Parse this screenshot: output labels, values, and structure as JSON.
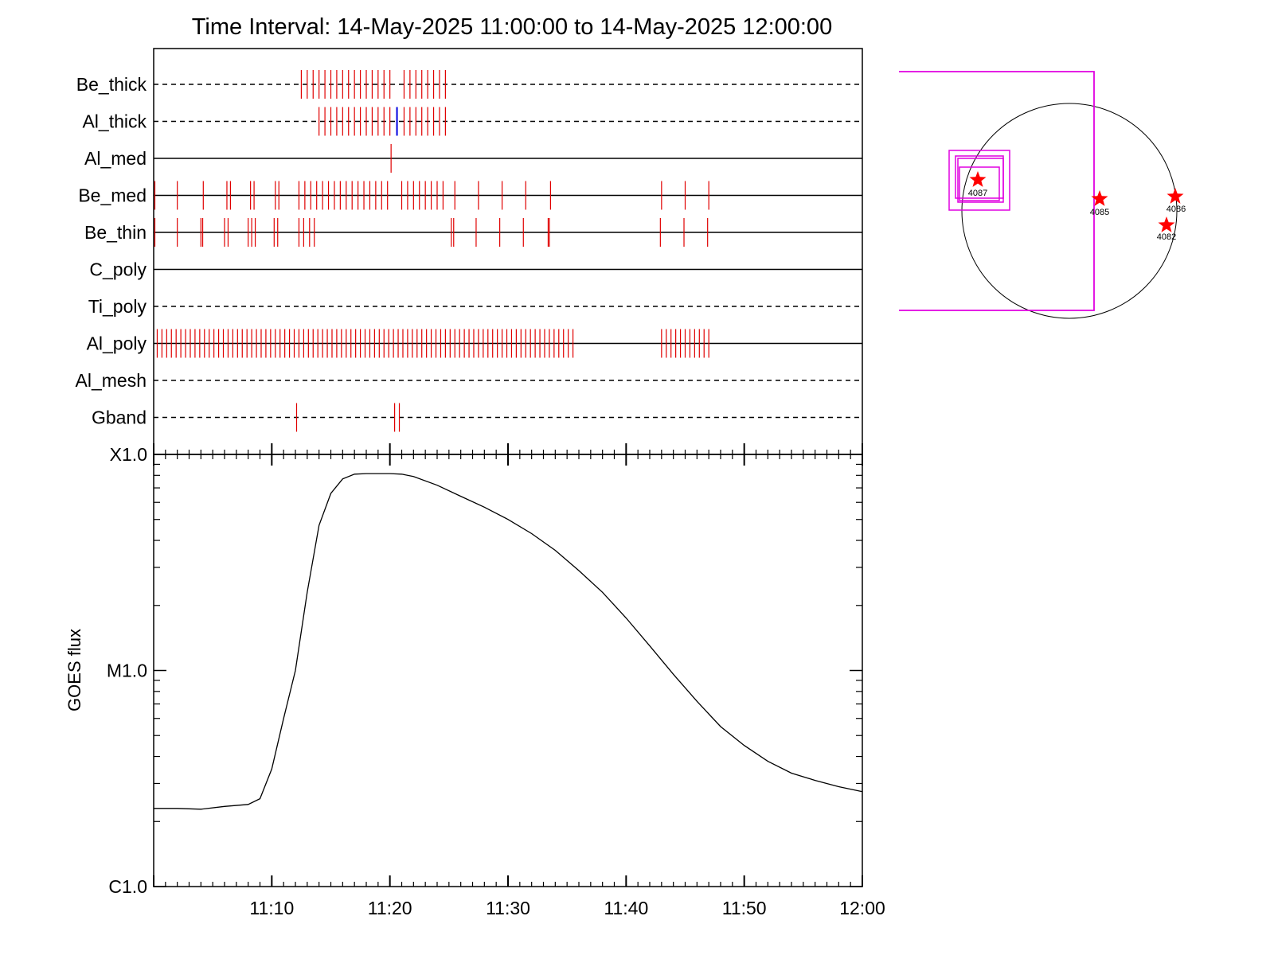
{
  "chart_data": [
    {
      "type": "timeline",
      "title": "Time Interval: 14-May-2025 11:00:00 to 14-May-2025 12:00:00",
      "time_range": [
        "11:00",
        "12:00"
      ],
      "rows": [
        {
          "name": "Be_thick",
          "line": "dashed",
          "events": [
            {
              "time": "11:12.5",
              "color": "#e00000"
            },
            {
              "time": "11:13.0",
              "color": "#e00000"
            },
            {
              "time": "11:13.5",
              "color": "#e00000"
            },
            {
              "time": "11:14.0",
              "color": "#e00000"
            },
            {
              "time": "11:14.5",
              "color": "#e00000"
            },
            {
              "time": "11:15.0",
              "color": "#e00000"
            },
            {
              "time": "11:15.5",
              "color": "#e00000"
            },
            {
              "time": "11:16.0",
              "color": "#e00000"
            },
            {
              "time": "11:16.5",
              "color": "#e00000"
            },
            {
              "time": "11:17.0",
              "color": "#e00000"
            },
            {
              "time": "11:17.5",
              "color": "#e00000"
            },
            {
              "time": "11:18.0",
              "color": "#e00000"
            },
            {
              "time": "11:18.5",
              "color": "#e00000"
            },
            {
              "time": "11:19.0",
              "color": "#e00000"
            },
            {
              "time": "11:19.5",
              "color": "#e00000"
            },
            {
              "time": "11:20.0",
              "color": "#e00000"
            },
            {
              "time": "11:21.2",
              "color": "#e00000"
            },
            {
              "time": "11:21.7",
              "color": "#e00000"
            },
            {
              "time": "11:22.2",
              "color": "#e00000"
            },
            {
              "time": "11:22.7",
              "color": "#e00000"
            },
            {
              "time": "11:23.2",
              "color": "#e00000"
            },
            {
              "time": "11:23.7",
              "color": "#e00000"
            },
            {
              "time": "11:24.2",
              "color": "#e00000"
            },
            {
              "time": "11:24.7",
              "color": "#e00000"
            }
          ]
        },
        {
          "name": "Al_thick",
          "line": "dashed",
          "events": [
            {
              "time": "11:14.0",
              "color": "#e00000"
            },
            {
              "time": "11:14.5",
              "color": "#e00000"
            },
            {
              "time": "11:15.0",
              "color": "#e00000"
            },
            {
              "time": "11:15.5",
              "color": "#e00000"
            },
            {
              "time": "11:16.0",
              "color": "#e00000"
            },
            {
              "time": "11:16.5",
              "color": "#e00000"
            },
            {
              "time": "11:17.0",
              "color": "#e00000"
            },
            {
              "time": "11:17.5",
              "color": "#e00000"
            },
            {
              "time": "11:18.0",
              "color": "#e00000"
            },
            {
              "time": "11:18.5",
              "color": "#e00000"
            },
            {
              "time": "11:19.0",
              "color": "#e00000"
            },
            {
              "time": "11:19.5",
              "color": "#e00000"
            },
            {
              "time": "11:20.0",
              "color": "#e00000"
            },
            {
              "time": "11:20.6",
              "color": "#0000e0"
            },
            {
              "time": "11:21.2",
              "color": "#e00000"
            },
            {
              "time": "11:21.7",
              "color": "#e00000"
            },
            {
              "time": "11:22.2",
              "color": "#e00000"
            },
            {
              "time": "11:22.7",
              "color": "#e00000"
            },
            {
              "time": "11:23.2",
              "color": "#e00000"
            },
            {
              "time": "11:23.7",
              "color": "#e00000"
            },
            {
              "time": "11:24.2",
              "color": "#e00000"
            },
            {
              "time": "11:24.7",
              "color": "#e00000"
            }
          ]
        },
        {
          "name": "Al_med",
          "line": "solid",
          "events": [
            {
              "time": "11:20.1",
              "color": "#e00000"
            }
          ]
        },
        {
          "name": "Be_med",
          "line": "solid",
          "events": [
            {
              "time": "11:00.1",
              "color": "#e00000"
            },
            {
              "time": "11:02.0",
              "color": "#e00000"
            },
            {
              "time": "11:04.2",
              "color": "#e00000"
            },
            {
              "time": "11:06.2",
              "color": "#e00000"
            },
            {
              "time": "11:06.5",
              "color": "#e00000"
            },
            {
              "time": "11:08.2",
              "color": "#e00000"
            },
            {
              "time": "11:08.5",
              "color": "#e00000"
            },
            {
              "time": "11:10.3",
              "color": "#e00000"
            },
            {
              "time": "11:10.6",
              "color": "#e00000"
            },
            {
              "time": "11:12.3",
              "color": "#e00000"
            },
            {
              "time": "11:12.8",
              "color": "#e00000"
            },
            {
              "time": "11:13.3",
              "color": "#e00000"
            },
            {
              "time": "11:13.8",
              "color": "#e00000"
            },
            {
              "time": "11:14.3",
              "color": "#e00000"
            },
            {
              "time": "11:14.8",
              "color": "#e00000"
            },
            {
              "time": "11:15.3",
              "color": "#e00000"
            },
            {
              "time": "11:15.8",
              "color": "#e00000"
            },
            {
              "time": "11:16.3",
              "color": "#e00000"
            },
            {
              "time": "11:16.8",
              "color": "#e00000"
            },
            {
              "time": "11:17.3",
              "color": "#e00000"
            },
            {
              "time": "11:17.8",
              "color": "#e00000"
            },
            {
              "time": "11:18.3",
              "color": "#e00000"
            },
            {
              "time": "11:18.8",
              "color": "#e00000"
            },
            {
              "time": "11:19.3",
              "color": "#e00000"
            },
            {
              "time": "11:19.8",
              "color": "#e00000"
            },
            {
              "time": "11:21.0",
              "color": "#e00000"
            },
            {
              "time": "11:21.5",
              "color": "#e00000"
            },
            {
              "time": "11:22.0",
              "color": "#e00000"
            },
            {
              "time": "11:22.5",
              "color": "#e00000"
            },
            {
              "time": "11:23.0",
              "color": "#e00000"
            },
            {
              "time": "11:23.5",
              "color": "#e00000"
            },
            {
              "time": "11:24.0",
              "color": "#e00000"
            },
            {
              "time": "11:24.5",
              "color": "#e00000"
            },
            {
              "time": "11:25.5",
              "color": "#e00000"
            },
            {
              "time": "11:27.5",
              "color": "#e00000"
            },
            {
              "time": "11:29.5",
              "color": "#e00000"
            },
            {
              "time": "11:31.5",
              "color": "#e00000"
            },
            {
              "time": "11:33.6",
              "color": "#e00000"
            },
            {
              "time": "11:43.0",
              "color": "#e00000"
            },
            {
              "time": "11:45.0",
              "color": "#e00000"
            },
            {
              "time": "11:47.0",
              "color": "#e00000"
            }
          ]
        },
        {
          "name": "Be_thin",
          "line": "solid",
          "events": [
            {
              "time": "11:00.1",
              "color": "#e00000"
            },
            {
              "time": "11:02.0",
              "color": "#e00000"
            },
            {
              "time": "11:04.0",
              "color": "#e00000"
            },
            {
              "time": "11:04.15",
              "color": "#e00000"
            },
            {
              "time": "11:06.0",
              "color": "#e00000"
            },
            {
              "time": "11:06.3",
              "color": "#e00000"
            },
            {
              "time": "11:08.0",
              "color": "#e00000"
            },
            {
              "time": "11:08.3",
              "color": "#e00000"
            },
            {
              "time": "11:08.6",
              "color": "#e00000"
            },
            {
              "time": "11:10.2",
              "color": "#e00000"
            },
            {
              "time": "11:10.5",
              "color": "#e00000"
            },
            {
              "time": "11:12.3",
              "color": "#e00000"
            },
            {
              "time": "11:12.7",
              "color": "#e00000"
            },
            {
              "time": "11:13.2",
              "color": "#e00000"
            },
            {
              "time": "11:13.6",
              "color": "#e00000"
            },
            {
              "time": "11:25.2",
              "color": "#e00000"
            },
            {
              "time": "11:25.4",
              "color": "#e00000"
            },
            {
              "time": "11:27.3",
              "color": "#e00000"
            },
            {
              "time": "11:29.3",
              "color": "#e00000"
            },
            {
              "time": "11:31.3",
              "color": "#e00000"
            },
            {
              "time": "11:33.4",
              "color": "#e00000"
            },
            {
              "time": "11:33.5",
              "color": "#e00000"
            },
            {
              "time": "11:42.9",
              "color": "#e00000"
            },
            {
              "time": "11:44.9",
              "color": "#e00000"
            },
            {
              "time": "11:46.9",
              "color": "#e00000"
            }
          ]
        },
        {
          "name": "C_poly",
          "line": "solid",
          "events": []
        },
        {
          "name": "Ti_poly",
          "line": "dashed",
          "events": []
        },
        {
          "name": "Al_poly",
          "line": "solid",
          "events_range": [
            {
              "start": "11:00.3",
              "end": "11:35.5",
              "step_min": 0.4,
              "color": "#e00000"
            },
            {
              "start": "11:43.0",
              "end": "11:47.0",
              "step_min": 0.4,
              "color": "#e00000"
            }
          ]
        },
        {
          "name": "Al_mesh",
          "line": "dashed",
          "events": []
        },
        {
          "name": "Gband",
          "line": "dashed",
          "events": [
            {
              "time": "11:12.1",
              "color": "#e00000"
            },
            {
              "time": "11:20.4",
              "color": "#e00000"
            },
            {
              "time": "11:20.8",
              "color": "#e00000"
            }
          ]
        }
      ]
    },
    {
      "type": "line",
      "ylabel": "GOES flux",
      "yscale": "log",
      "ytick_labels": [
        "C1.0",
        "M1.0",
        "X1.0"
      ],
      "ylim": [
        1e-06,
        0.0001
      ],
      "xlim": [
        "11:00",
        "12:00"
      ],
      "xtick_labels": [
        "11:10",
        "11:20",
        "11:30",
        "11:40",
        "11:50",
        "12:00"
      ],
      "series": [
        {
          "x": [
            "11:00",
            "11:02",
            "11:04",
            "11:06",
            "11:08",
            "11:09",
            "11:10",
            "11:11",
            "11:12",
            "11:13",
            "11:14",
            "11:15",
            "11:16",
            "11:17",
            "11:18",
            "11:19",
            "11:20",
            "11:21",
            "11:22",
            "11:24",
            "11:26",
            "11:28",
            "11:30",
            "11:32",
            "11:34",
            "11:36",
            "11:38",
            "11:40",
            "11:42",
            "11:44",
            "11:46",
            "11:48",
            "11:50",
            "11:52",
            "11:54",
            "11:56",
            "11:58",
            "12:00"
          ],
          "y": [
            2.3e-06,
            2.3e-06,
            2.28e-06,
            2.35e-06,
            2.4e-06,
            2.55e-06,
            3.5e-06,
            6e-06,
            1e-05,
            2.3e-05,
            4.7e-05,
            6.6e-05,
            7.7e-05,
            8.1e-05,
            8.15e-05,
            8.15e-05,
            8.15e-05,
            8.1e-05,
            7.9e-05,
            7.2e-05,
            6.4e-05,
            5.7e-05,
            5e-05,
            4.3e-05,
            3.6e-05,
            2.9e-05,
            2.3e-05,
            1.75e-05,
            1.3e-05,
            9.6e-06,
            7.2e-06,
            5.5e-06,
            4.5e-06,
            3.8e-06,
            3.35e-06,
            3.1e-06,
            2.9e-06,
            2.75e-06
          ],
          "color": "#000000"
        }
      ]
    },
    {
      "type": "sun_map",
      "disk_stroke": "#000000",
      "box_color": "#e000e0",
      "marker_color": "#ff0000",
      "regions": [
        {
          "label": "4087"
        },
        {
          "label": "4085"
        },
        {
          "label": "4086"
        },
        {
          "label": "4082"
        }
      ]
    }
  ]
}
